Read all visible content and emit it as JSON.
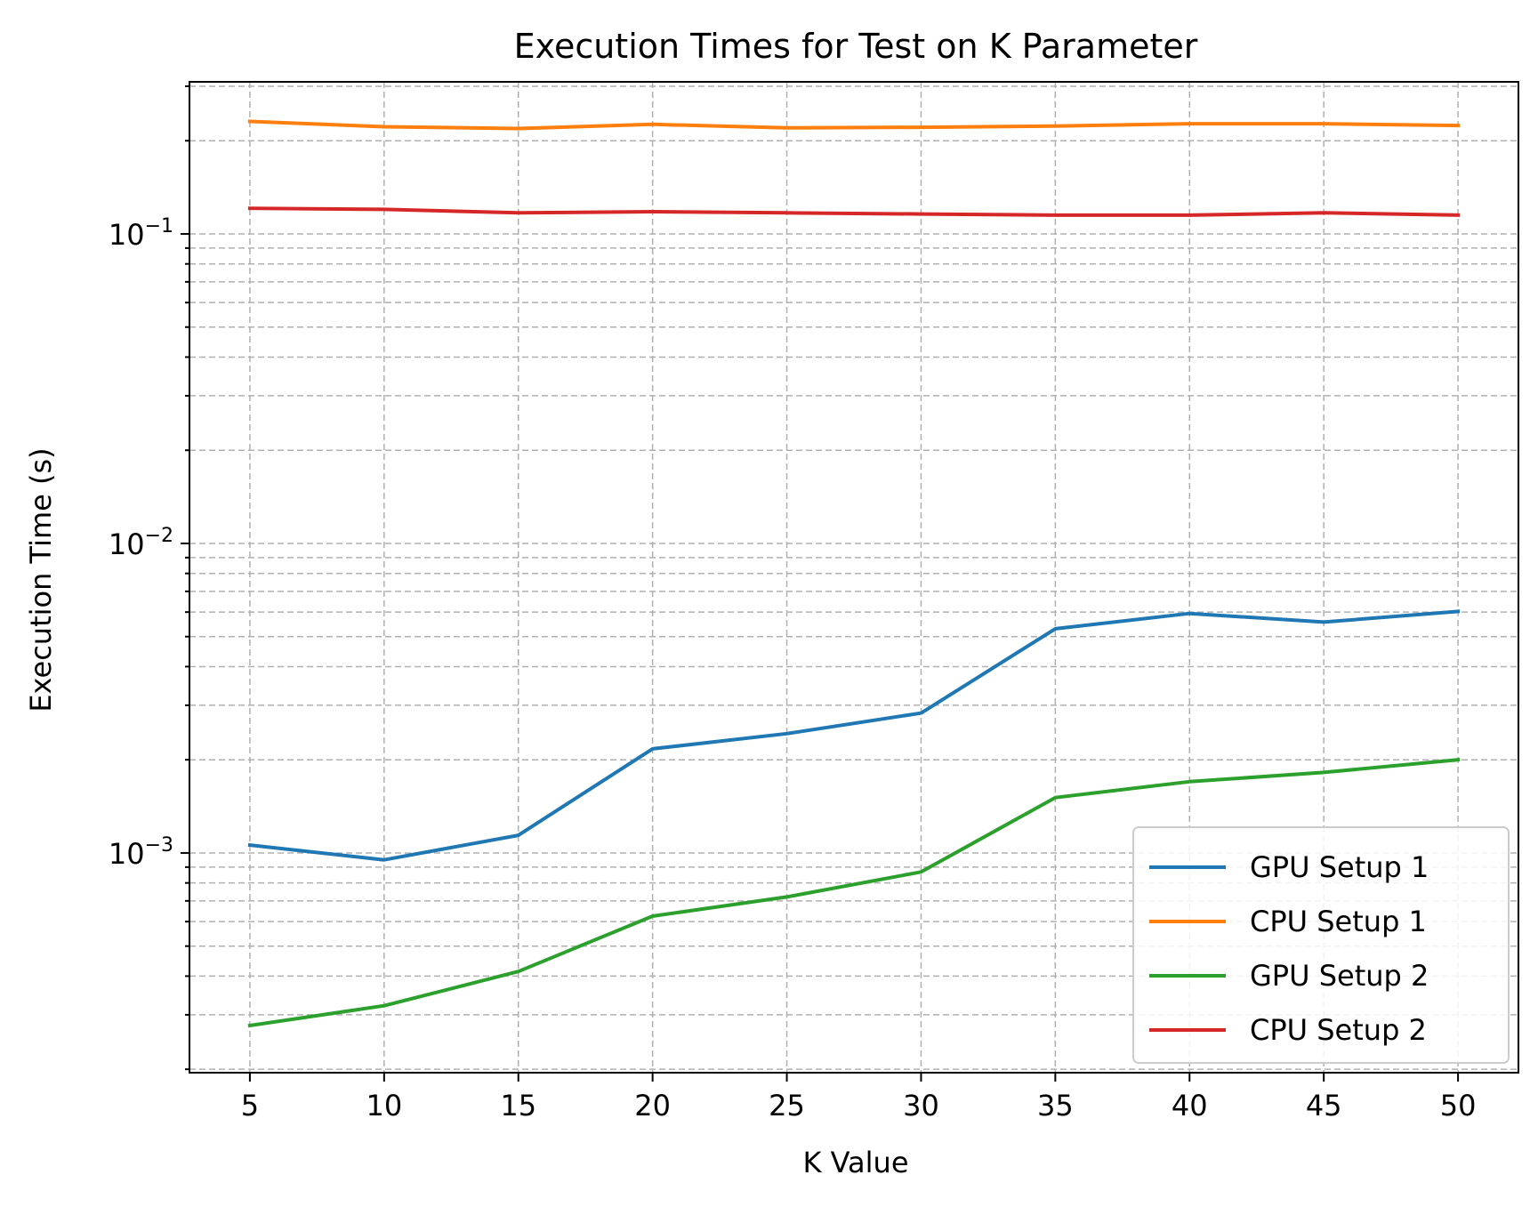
{
  "chart_data": {
    "type": "line",
    "title": "Execution Times for Test on K Parameter",
    "xlabel": "K Value",
    "ylabel": "Execution Time (s)",
    "yscale": "log",
    "x": [
      5,
      10,
      15,
      20,
      25,
      30,
      35,
      40,
      45,
      50
    ],
    "xticks": [
      "5",
      "10",
      "15",
      "20",
      "25",
      "30",
      "35",
      "40",
      "45",
      "50"
    ],
    "yticks": [
      {
        "value": 0.001,
        "base": "10",
        "exp": "−3"
      },
      {
        "value": 0.01,
        "base": "10",
        "exp": "−2"
      },
      {
        "value": 0.1,
        "base": "10",
        "exp": "−1"
      }
    ],
    "xlim": [
      2.75,
      52.25
    ],
    "ylim": [
      0.000195,
      0.31
    ],
    "grid": true,
    "legend_position": "lower-right",
    "series": [
      {
        "name": "GPU Setup 1",
        "color": "#1f77b4",
        "values": [
          0.00106,
          0.00095,
          0.00114,
          0.00217,
          0.00243,
          0.00283,
          0.0053,
          0.00594,
          0.00557,
          0.00603
        ]
      },
      {
        "name": "CPU Setup 1",
        "color": "#ff7f0e",
        "values": [
          0.231,
          0.222,
          0.219,
          0.226,
          0.22,
          0.221,
          0.223,
          0.227,
          0.227,
          0.224
        ]
      },
      {
        "name": "GPU Setup 2",
        "color": "#2ca02c",
        "values": [
          0.000277,
          0.000321,
          0.000414,
          0.000625,
          0.000721,
          0.000868,
          0.00151,
          0.0017,
          0.00182,
          0.002
        ]
      },
      {
        "name": "CPU Setup 2",
        "color": "#d62728",
        "values": [
          0.121,
          0.12,
          0.117,
          0.118,
          0.117,
          0.116,
          0.115,
          0.115,
          0.117,
          0.115
        ]
      }
    ]
  }
}
